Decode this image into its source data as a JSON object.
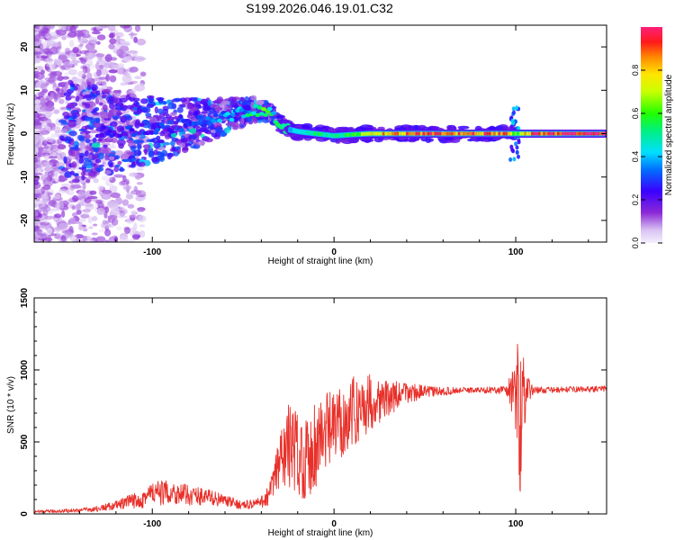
{
  "title": "S199.2026.046.19.01.C32",
  "chart_data": [
    {
      "type": "heatmap",
      "name": "spectrogram",
      "xlabel": "Height of straight line (km)",
      "ylabel": "Frequency (Hz)",
      "xlim": [
        -165,
        150
      ],
      "ylim": [
        -25,
        25
      ],
      "xticks": [
        -100,
        0,
        100
      ],
      "yticks": [
        -20,
        -10,
        0,
        10,
        20
      ],
      "xtick_labels": [
        "-100",
        "0",
        "100"
      ],
      "ytick_labels": [
        "-20",
        "-10",
        "0",
        "10",
        "20"
      ],
      "colorbar": {
        "label": "Normalized spectral amplitude",
        "range": [
          0.0,
          1.0
        ],
        "ticks": [
          0.0,
          0.2,
          0.4,
          0.6,
          0.8
        ],
        "tick_labels": [
          "0.0",
          "0.2",
          "0.4",
          "0.6",
          "0.8"
        ]
      },
      "ridge": {
        "x": [
          -130,
          -110,
          -90,
          -70,
          -55,
          -45,
          -40,
          -35,
          -30,
          -25,
          -20,
          -10,
          0,
          10,
          20,
          40,
          60,
          80,
          95,
          100,
          110,
          130,
          150
        ],
        "freq": [
          0.3,
          0.8,
          1.5,
          3.0,
          4.5,
          5.5,
          5.5,
          5.0,
          2.5,
          1.0,
          0.5,
          0.0,
          -0.5,
          -0.2,
          0.0,
          0.0,
          0.0,
          0.0,
          0.0,
          0.0,
          0.0,
          0.0,
          0.0
        ],
        "amplitude": [
          0.2,
          0.25,
          0.25,
          0.3,
          0.35,
          0.45,
          0.55,
          0.5,
          0.45,
          0.4,
          0.45,
          0.55,
          0.5,
          0.6,
          0.8,
          0.9,
          0.9,
          0.9,
          0.9,
          0.6,
          0.95,
          1.0,
          1.0
        ]
      }
    },
    {
      "type": "line",
      "name": "snr",
      "xlabel": "Height of straight line (km)",
      "ylabel": "SNR (10 * v/v)",
      "xlim": [
        -165,
        150
      ],
      "ylim": [
        0,
        1500
      ],
      "xticks": [
        -100,
        0,
        100
      ],
      "yticks": [
        0,
        500,
        1000,
        1500
      ],
      "xtick_labels": [
        "-100",
        "0",
        "100"
      ],
      "ytick_labels": [
        "0",
        "500",
        "1000",
        "1500"
      ],
      "color": "#e8302a",
      "series": [
        {
          "name": "SNR envelope",
          "x": [
            -165,
            -150,
            -140,
            -130,
            -120,
            -110,
            -100,
            -90,
            -80,
            -70,
            -60,
            -50,
            -40,
            -35,
            -30,
            -25,
            -20,
            -15,
            -10,
            -5,
            0,
            5,
            10,
            20,
            30,
            40,
            50,
            60,
            70,
            80,
            90,
            95,
            100,
            102,
            104,
            106,
            110,
            120,
            130,
            140,
            150
          ],
          "mean": [
            15,
            20,
            25,
            35,
            60,
            90,
            140,
            150,
            130,
            120,
            90,
            60,
            80,
            150,
            350,
            480,
            420,
            380,
            500,
            550,
            600,
            650,
            700,
            780,
            800,
            840,
            850,
            850,
            860,
            860,
            860,
            860,
            860,
            600,
            860,
            860,
            860,
            860,
            865,
            865,
            870
          ],
          "amp": [
            10,
            12,
            15,
            20,
            30,
            60,
            90,
            80,
            70,
            60,
            40,
            30,
            40,
            90,
            250,
            300,
            300,
            280,
            350,
            300,
            250,
            250,
            250,
            200,
            120,
            80,
            40,
            30,
            20,
            20,
            25,
            40,
            300,
            650,
            400,
            100,
            25,
            20,
            20,
            20,
            20
          ]
        }
      ]
    }
  ]
}
